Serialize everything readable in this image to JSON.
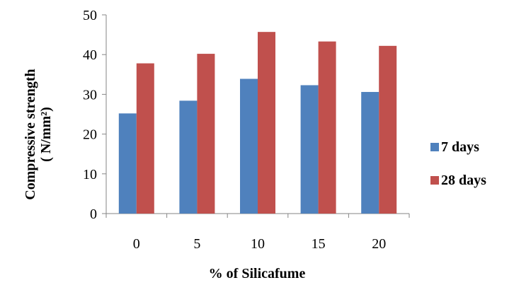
{
  "chart_data": {
    "type": "bar",
    "categories": [
      "0",
      "5",
      "10",
      "15",
      "20"
    ],
    "series": [
      {
        "name": "7 days",
        "values": [
          25.2,
          28.4,
          33.9,
          32.3,
          30.6
        ],
        "color": "#4F81BD"
      },
      {
        "name": "28 days",
        "values": [
          37.8,
          40.2,
          45.7,
          43.3,
          42.2
        ],
        "color": "#C0504D"
      }
    ],
    "xlabel": "% of Silicafume",
    "ylabel_line1": "Compressive strength",
    "ylabel_line2": "( N/mm²)",
    "ylim": [
      0,
      50
    ],
    "yticks": [
      "0",
      "10",
      "20",
      "30",
      "40",
      "50"
    ],
    "grid": false,
    "legend_position": "right"
  }
}
